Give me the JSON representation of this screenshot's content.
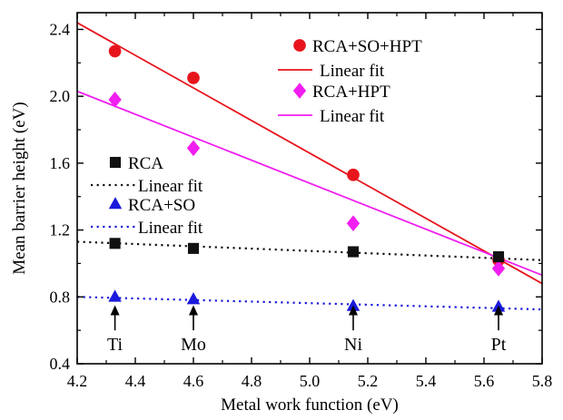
{
  "chart_data": {
    "type": "scatter",
    "xlabel": "Metal work function (eV)",
    "ylabel": "Mean barrier height (eV)",
    "xlim": [
      4.2,
      5.8
    ],
    "ylim": [
      0.4,
      2.5
    ],
    "x_ticks": [
      "4.2",
      "4.4",
      "4.6",
      "4.8",
      "5.0",
      "5.2",
      "5.4",
      "5.6",
      "5.8"
    ],
    "y_ticks": [
      "0.4",
      "0.8",
      "1.2",
      "1.6",
      "2.0",
      "2.4"
    ],
    "x_tick_values": [
      4.2,
      4.4,
      4.6,
      4.8,
      5.0,
      5.2,
      5.4,
      5.6,
      5.8
    ],
    "y_tick_values": [
      0.4,
      0.8,
      1.2,
      1.6,
      2.0,
      2.4
    ],
    "grid": false,
    "legend": "right, stacked in upper region",
    "series": [
      {
        "name": "RCA+SO+HPT",
        "marker": "circle",
        "color": "#e8141c",
        "x": [
          4.33,
          4.6,
          5.15,
          5.65
        ],
        "y": [
          2.27,
          2.11,
          1.53,
          1.02
        ],
        "fit_name": "Linear fit",
        "fit_style": "solid",
        "fit": {
          "x": [
            4.2,
            5.8
          ],
          "y": [
            2.44,
            0.88
          ]
        }
      },
      {
        "name": "RCA+HPT",
        "marker": "diamond",
        "color": "#f01ef0",
        "x": [
          4.33,
          4.6,
          5.15,
          5.65
        ],
        "y": [
          1.98,
          1.69,
          1.24,
          0.97
        ],
        "fit_name": "Linear fit",
        "fit_style": "solid",
        "fit": {
          "x": [
            4.2,
            5.8
          ],
          "y": [
            2.03,
            0.93
          ]
        }
      },
      {
        "name": "RCA",
        "marker": "square",
        "color": "#111111",
        "x": [
          4.33,
          4.6,
          5.15,
          5.65
        ],
        "y": [
          1.12,
          1.09,
          1.07,
          1.04
        ],
        "fit_name": "Linear fit",
        "fit_style": "dotted",
        "fit": {
          "x": [
            4.2,
            5.8
          ],
          "y": [
            1.13,
            1.02
          ]
        }
      },
      {
        "name": "RCA+SO",
        "marker": "triangle",
        "color": "#1a1adc",
        "x": [
          4.33,
          4.6,
          5.15,
          5.65
        ],
        "y": [
          0.8,
          0.785,
          0.745,
          0.74
        ],
        "fit_name": "Linear fit",
        "fit_style": "dotted",
        "fit": {
          "x": [
            4.2,
            5.8
          ],
          "y": [
            0.8,
            0.725
          ]
        }
      }
    ],
    "annotations": [
      {
        "label": "Ti",
        "x": 4.33
      },
      {
        "label": "Mo",
        "x": 4.6
      },
      {
        "label": "Ni",
        "x": 5.15
      },
      {
        "label": "Pt",
        "x": 5.65
      }
    ]
  }
}
